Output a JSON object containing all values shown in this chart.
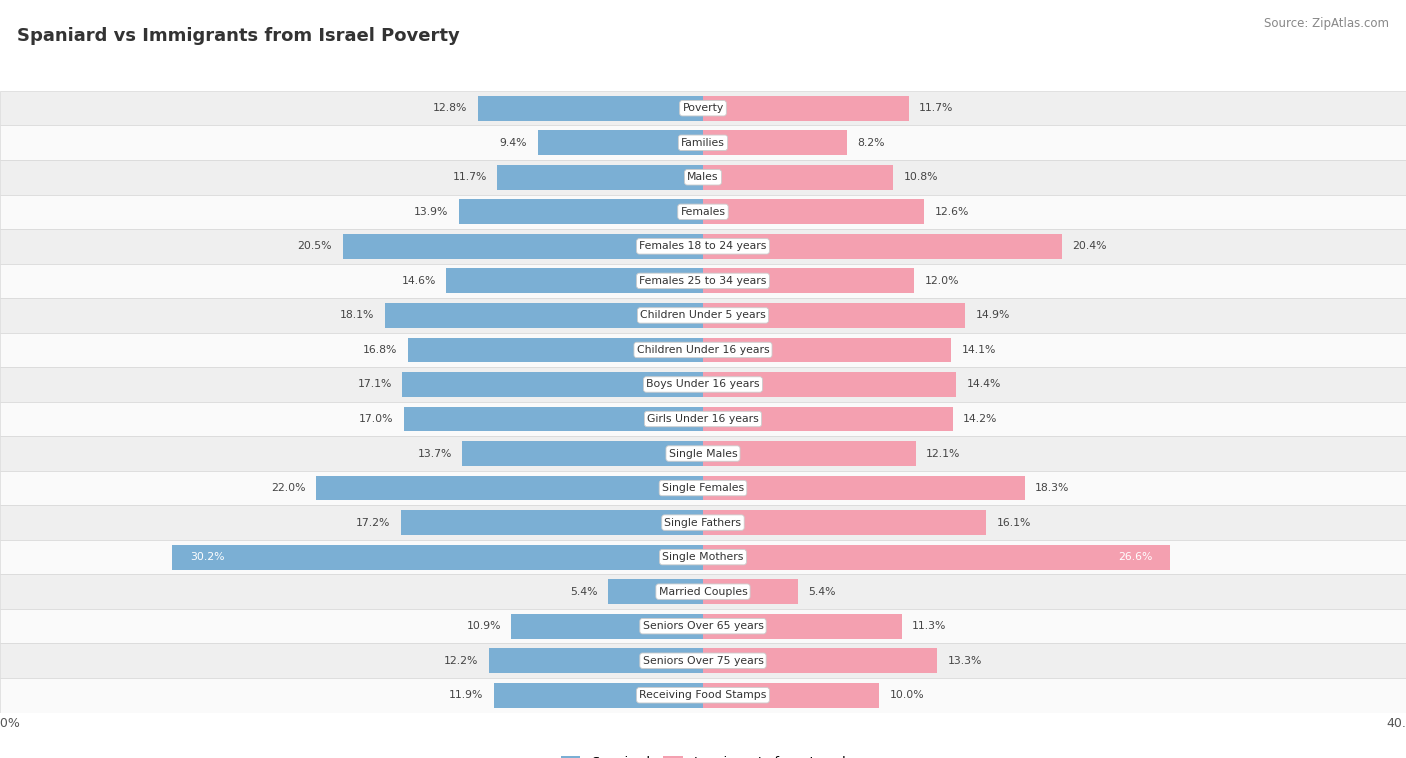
{
  "title": "Spaniard vs Immigrants from Israel Poverty",
  "source": "Source: ZipAtlas.com",
  "categories": [
    "Poverty",
    "Families",
    "Males",
    "Females",
    "Females 18 to 24 years",
    "Females 25 to 34 years",
    "Children Under 5 years",
    "Children Under 16 years",
    "Boys Under 16 years",
    "Girls Under 16 years",
    "Single Males",
    "Single Females",
    "Single Fathers",
    "Single Mothers",
    "Married Couples",
    "Seniors Over 65 years",
    "Seniors Over 75 years",
    "Receiving Food Stamps"
  ],
  "spaniard": [
    12.8,
    9.4,
    11.7,
    13.9,
    20.5,
    14.6,
    18.1,
    16.8,
    17.1,
    17.0,
    13.7,
    22.0,
    17.2,
    30.2,
    5.4,
    10.9,
    12.2,
    11.9
  ],
  "israel": [
    11.7,
    8.2,
    10.8,
    12.6,
    20.4,
    12.0,
    14.9,
    14.1,
    14.4,
    14.2,
    12.1,
    18.3,
    16.1,
    26.6,
    5.4,
    11.3,
    13.3,
    10.0
  ],
  "spaniard_color": "#7bafd4",
  "israel_color": "#f4a0b0",
  "bg_row_light": "#efefef",
  "bg_row_white": "#fafafa",
  "max_val": 40.0,
  "bar_height": 0.72,
  "legend_spaniard": "Spaniard",
  "legend_israel": "Immigrants from Israel",
  "label_threshold_white": 25.0
}
